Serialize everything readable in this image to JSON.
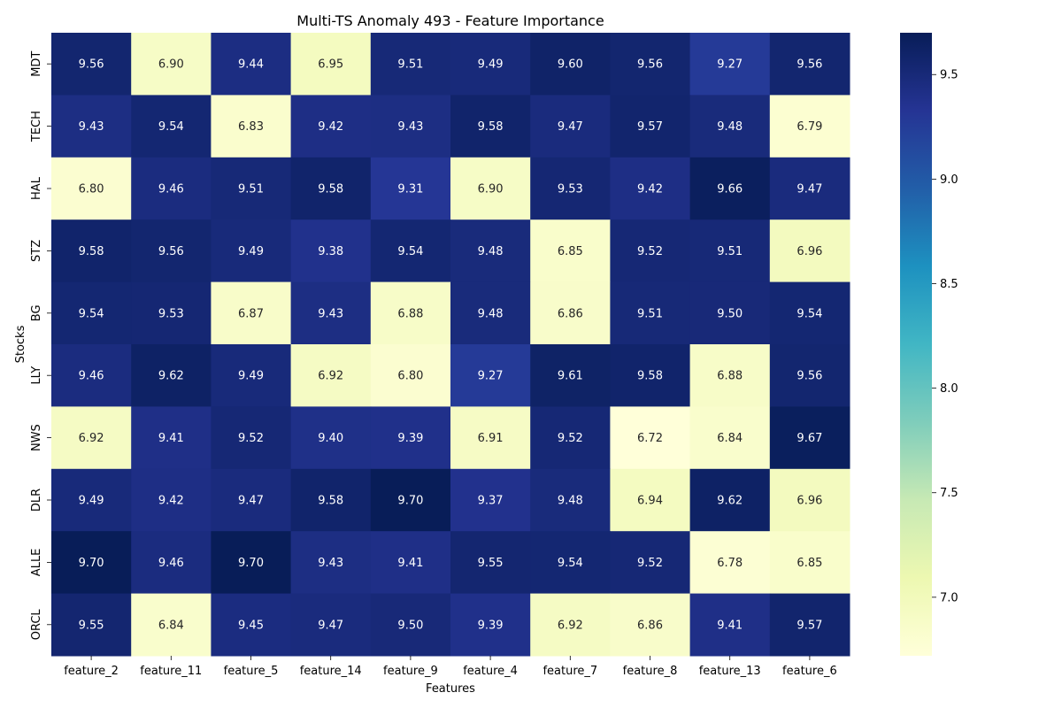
{
  "chart_data": {
    "type": "heatmap",
    "title": "Multi-TS Anomaly 493 - Feature Importance",
    "xlabel": "Features",
    "ylabel": "Stocks",
    "x_categories": [
      "feature_2",
      "feature_11",
      "feature_5",
      "feature_14",
      "feature_9",
      "feature_4",
      "feature_7",
      "feature_8",
      "feature_13",
      "feature_6"
    ],
    "y_categories": [
      "MDT",
      "TECH",
      "HAL",
      "STZ",
      "BG",
      "LLY",
      "NWS",
      "DLR",
      "ALLE",
      "ORCL"
    ],
    "values": [
      [
        9.56,
        6.9,
        9.44,
        6.95,
        9.51,
        9.49,
        9.6,
        9.56,
        9.27,
        9.56
      ],
      [
        9.43,
        9.54,
        6.83,
        9.42,
        9.43,
        9.58,
        9.47,
        9.57,
        9.48,
        6.79
      ],
      [
        6.8,
        9.46,
        9.51,
        9.58,
        9.31,
        6.9,
        9.53,
        9.42,
        9.66,
        9.47
      ],
      [
        9.58,
        9.56,
        9.49,
        9.38,
        9.54,
        9.48,
        6.85,
        9.52,
        9.51,
        6.96
      ],
      [
        9.54,
        9.53,
        6.87,
        9.43,
        6.88,
        9.48,
        6.86,
        9.51,
        9.5,
        9.54
      ],
      [
        9.46,
        9.62,
        9.49,
        6.92,
        6.8,
        9.27,
        9.61,
        9.58,
        6.88,
        9.56
      ],
      [
        6.92,
        9.41,
        9.52,
        9.4,
        9.39,
        6.91,
        9.52,
        6.72,
        6.84,
        9.67
      ],
      [
        9.49,
        9.42,
        9.47,
        9.58,
        9.7,
        9.37,
        9.48,
        6.94,
        9.62,
        6.96
      ],
      [
        9.7,
        9.46,
        9.7,
        9.43,
        9.41,
        9.55,
        9.54,
        9.52,
        6.78,
        6.85
      ],
      [
        9.55,
        6.84,
        9.45,
        9.47,
        9.5,
        9.39,
        6.92,
        6.86,
        9.41,
        9.57
      ]
    ],
    "colormap": "YlGnBu",
    "colorbar": {
      "range": [
        6.72,
        9.7
      ],
      "ticks": [
        "7.0",
        "7.5",
        "8.0",
        "8.5",
        "9.0",
        "9.5"
      ],
      "tick_values": [
        7.0,
        7.5,
        8.0,
        8.5,
        9.0,
        9.5
      ]
    },
    "grid": false,
    "annotations": "cell values with 2 decimals"
  }
}
